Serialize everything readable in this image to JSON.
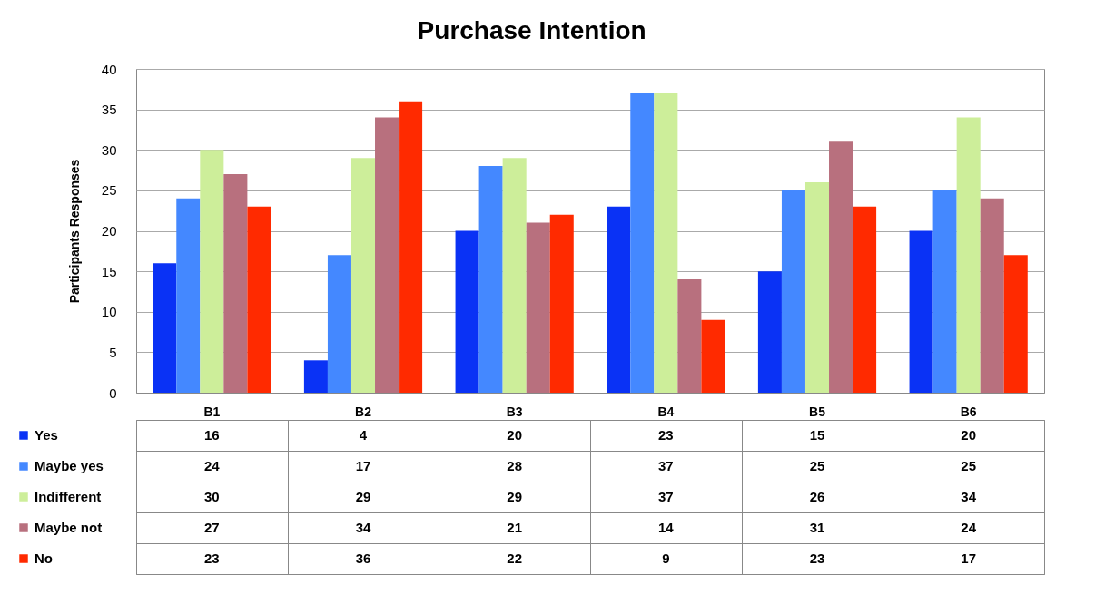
{
  "chart_data": {
    "type": "bar",
    "title": "Purchase Intention",
    "ylabel": "Participants Responses",
    "categories": [
      "B1",
      "B2",
      "B3",
      "B4",
      "B5",
      "B6"
    ],
    "series": [
      {
        "name": "Yes",
        "color": "#0a32f5",
        "values": [
          16,
          4,
          20,
          23,
          15,
          20
        ]
      },
      {
        "name": "Maybe yes",
        "color": "#4488ff",
        "values": [
          24,
          17,
          28,
          37,
          25,
          25
        ]
      },
      {
        "name": "Indifferent",
        "color": "#cdee9a",
        "values": [
          30,
          29,
          29,
          37,
          26,
          34
        ]
      },
      {
        "name": "Maybe not",
        "color": "#b8707e",
        "values": [
          27,
          34,
          21,
          14,
          31,
          24
        ]
      },
      {
        "name": "No",
        "color": "#ff2a00",
        "values": [
          23,
          36,
          22,
          9,
          23,
          17
        ]
      }
    ],
    "ylim": [
      0,
      40
    ],
    "yticks": [
      0,
      5,
      10,
      15,
      20,
      25,
      30,
      35,
      40
    ],
    "grid": "y",
    "legend": "bottom",
    "data_labels": true
  }
}
